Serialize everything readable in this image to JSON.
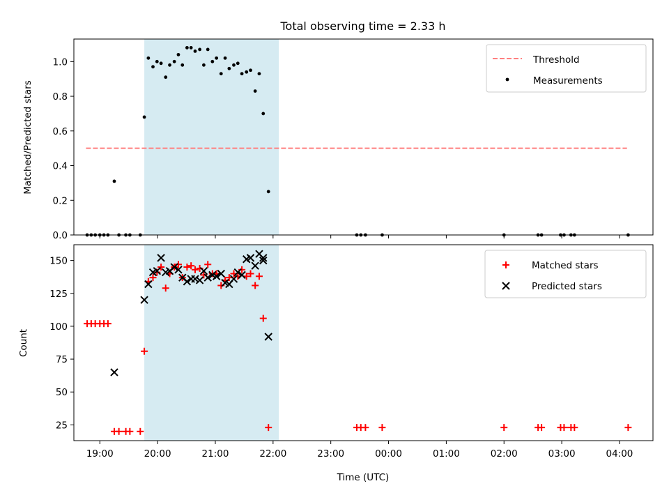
{
  "title": "Total observing time = 2.33 h",
  "colors": {
    "threshold": "#ff7f7f",
    "measurement": "#000000",
    "matched": "#ff0000",
    "predicted": "#000000",
    "shade": "#add8e6"
  },
  "chart_data": [
    {
      "type": "scatter",
      "ylabel": "Matched/Predicted stars",
      "xlim": [
        18.55,
        28.58
      ],
      "ylim": [
        0.0,
        1.13
      ],
      "x_ticks": [
        19,
        20,
        21,
        22,
        23,
        24,
        25,
        26,
        27,
        28
      ],
      "y_ticks": [
        0.0,
        0.2,
        0.4,
        0.6,
        0.8,
        1.0
      ],
      "y_tick_labels": [
        "0.0",
        "0.2",
        "0.4",
        "0.6",
        "0.8",
        "1.0"
      ],
      "shaded_interval": [
        19.77,
        22.1
      ],
      "legend": {
        "position": "top-right",
        "entries": [
          "Threshold",
          "Measurements"
        ]
      },
      "series": [
        {
          "name": "Threshold",
          "style": "dashed-line",
          "points": [
            [
              18.76,
              0.5
            ],
            [
              28.13,
              0.5
            ]
          ]
        },
        {
          "name": "Measurements",
          "style": "dot",
          "points": [
            [
              18.78,
              0.0
            ],
            [
              18.85,
              0.0
            ],
            [
              18.92,
              0.0
            ],
            [
              19.0,
              0.0
            ],
            [
              19.07,
              0.0
            ],
            [
              19.14,
              0.0
            ],
            [
              19.25,
              0.31
            ],
            [
              19.33,
              0.0
            ],
            [
              19.45,
              0.0
            ],
            [
              19.52,
              0.0
            ],
            [
              19.7,
              0.0
            ],
            [
              19.77,
              0.68
            ],
            [
              19.84,
              1.02
            ],
            [
              19.92,
              0.97
            ],
            [
              19.99,
              1.0
            ],
            [
              20.06,
              0.99
            ],
            [
              20.14,
              0.91
            ],
            [
              20.21,
              0.98
            ],
            [
              20.29,
              1.0
            ],
            [
              20.36,
              1.04
            ],
            [
              20.43,
              0.98
            ],
            [
              20.51,
              1.08
            ],
            [
              20.58,
              1.08
            ],
            [
              20.65,
              1.06
            ],
            [
              20.73,
              1.07
            ],
            [
              20.8,
              0.98
            ],
            [
              20.87,
              1.07
            ],
            [
              20.95,
              1.0
            ],
            [
              21.02,
              1.02
            ],
            [
              21.1,
              0.93
            ],
            [
              21.17,
              1.02
            ],
            [
              21.24,
              0.96
            ],
            [
              21.32,
              0.98
            ],
            [
              21.39,
              0.99
            ],
            [
              21.46,
              0.93
            ],
            [
              21.54,
              0.94
            ],
            [
              21.61,
              0.95
            ],
            [
              21.69,
              0.83
            ],
            [
              21.76,
              0.93
            ],
            [
              21.83,
              0.7
            ],
            [
              21.92,
              0.25
            ],
            [
              23.45,
              0.0
            ],
            [
              23.52,
              0.0
            ],
            [
              23.6,
              0.0
            ],
            [
              23.89,
              0.0
            ],
            [
              26.0,
              0.0
            ],
            [
              26.59,
              0.0
            ],
            [
              26.65,
              0.0
            ],
            [
              26.98,
              0.0
            ],
            [
              27.04,
              0.0
            ],
            [
              27.16,
              0.0
            ],
            [
              27.22,
              0.0
            ],
            [
              28.15,
              0.0
            ]
          ]
        }
      ]
    },
    {
      "type": "scatter",
      "title": "",
      "xlabel": "Time (UTC)",
      "ylabel": "Count",
      "xlim": [
        18.55,
        28.58
      ],
      "ylim": [
        13,
        162
      ],
      "x_ticks": [
        19,
        20,
        21,
        22,
        23,
        24,
        25,
        26,
        27,
        28
      ],
      "x_tick_labels": [
        "19:00",
        "20:00",
        "21:00",
        "22:00",
        "23:00",
        "00:00",
        "01:00",
        "02:00",
        "03:00",
        "04:00"
      ],
      "y_ticks": [
        25,
        50,
        75,
        100,
        125,
        150
      ],
      "y_tick_labels": [
        "25",
        "50",
        "75",
        "100",
        "125",
        "150"
      ],
      "shaded_interval": [
        19.77,
        22.1
      ],
      "legend": {
        "position": "top-right",
        "entries": [
          "Matched stars",
          "Predicted stars"
        ]
      },
      "series": [
        {
          "name": "Matched stars",
          "marker": "plus",
          "points": [
            [
              18.78,
              102
            ],
            [
              18.85,
              102
            ],
            [
              18.92,
              102
            ],
            [
              19.0,
              102
            ],
            [
              19.07,
              102
            ],
            [
              19.14,
              102
            ],
            [
              19.25,
              20
            ],
            [
              19.33,
              20
            ],
            [
              19.45,
              20
            ],
            [
              19.52,
              20
            ],
            [
              19.7,
              20
            ],
            [
              19.77,
              81
            ],
            [
              19.84,
              134
            ],
            [
              19.92,
              137
            ],
            [
              19.99,
              141
            ],
            [
              20.06,
              145
            ],
            [
              20.14,
              129
            ],
            [
              20.21,
              140
            ],
            [
              20.29,
              145
            ],
            [
              20.36,
              147
            ],
            [
              20.43,
              137
            ],
            [
              20.51,
              145
            ],
            [
              20.58,
              146
            ],
            [
              20.65,
              143
            ],
            [
              20.73,
              144
            ],
            [
              20.8,
              139
            ],
            [
              20.87,
              147
            ],
            [
              20.95,
              140
            ],
            [
              21.02,
              140
            ],
            [
              21.1,
              131
            ],
            [
              21.17,
              135
            ],
            [
              21.24,
              137
            ],
            [
              21.32,
              140
            ],
            [
              21.39,
              138
            ],
            [
              21.46,
              143
            ],
            [
              21.54,
              138
            ],
            [
              21.61,
              140
            ],
            [
              21.69,
              131
            ],
            [
              21.76,
              138
            ],
            [
              21.83,
              106
            ],
            [
              21.92,
              23
            ],
            [
              23.45,
              23
            ],
            [
              23.52,
              23
            ],
            [
              23.6,
              23
            ],
            [
              23.89,
              23
            ],
            [
              26.0,
              23
            ],
            [
              26.59,
              23
            ],
            [
              26.65,
              23
            ],
            [
              26.98,
              23
            ],
            [
              27.04,
              23
            ],
            [
              27.16,
              23
            ],
            [
              27.22,
              23
            ],
            [
              28.15,
              23
            ]
          ]
        },
        {
          "name": "Predicted stars",
          "marker": "x",
          "points": [
            [
              19.25,
              65
            ],
            [
              19.77,
              120
            ],
            [
              19.84,
              132
            ],
            [
              19.92,
              141
            ],
            [
              19.99,
              142
            ],
            [
              20.06,
              152
            ],
            [
              20.14,
              141
            ],
            [
              20.21,
              142
            ],
            [
              20.29,
              145
            ],
            [
              20.36,
              143
            ],
            [
              20.43,
              137
            ],
            [
              20.51,
              134
            ],
            [
              20.58,
              136
            ],
            [
              20.65,
              136
            ],
            [
              20.73,
              135
            ],
            [
              20.8,
              142
            ],
            [
              20.87,
              137
            ],
            [
              20.95,
              139
            ],
            [
              21.02,
              138
            ],
            [
              21.1,
              140
            ],
            [
              21.17,
              133
            ],
            [
              21.24,
              132
            ],
            [
              21.32,
              136
            ],
            [
              21.39,
              141
            ],
            [
              21.46,
              139
            ],
            [
              21.54,
              151
            ],
            [
              21.61,
              152
            ],
            [
              21.69,
              146
            ],
            [
              21.76,
              155
            ],
            [
              21.83,
              150
            ],
            [
              21.83,
              152
            ],
            [
              21.92,
              92
            ]
          ]
        }
      ]
    }
  ]
}
